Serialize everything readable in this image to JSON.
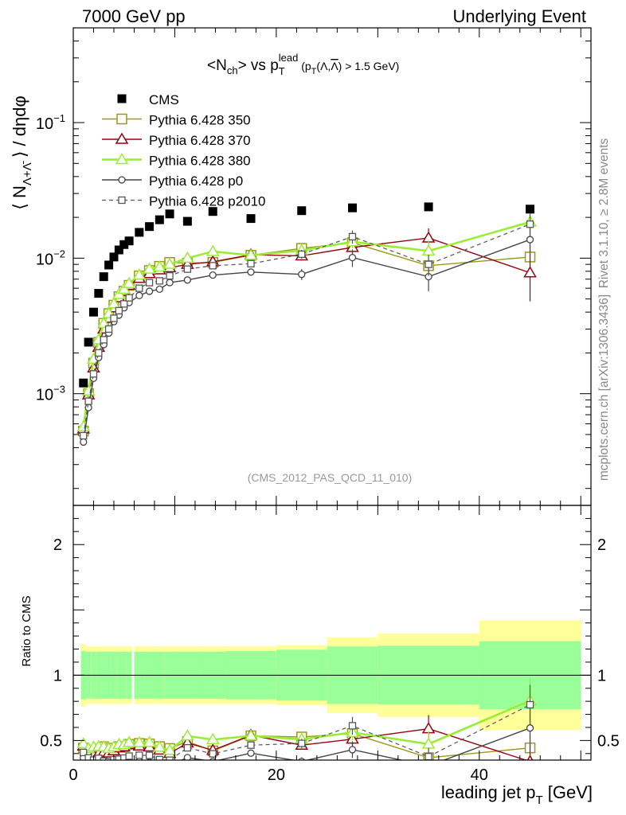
{
  "header": {
    "left": "7000 GeV pp",
    "right": "Underlying Event"
  },
  "side_labels": {
    "rivet": "Rivet 3.1.10, ≥ 2.8M events",
    "mcplots": "mcplots.cern.ch [arXiv:1306.3436]"
  },
  "chart_data": {
    "type": "scatter",
    "title": "<Nch> vs pTlead (pT(Λ,Λ̄) > 1.5 GeV)",
    "title_parts": {
      "a": "<N",
      "a_sub": "ch",
      "b": "> vs p",
      "b_sub": "T",
      "b_sup": "lead",
      "c": " (p",
      "c_sub": "T",
      "d": "(Λ,",
      "d_bar": "Λ",
      "e": ") > 1.5 GeV)"
    },
    "watermark": "(CMS_2012_PAS_QCD_11_010)",
    "xlabel": "leading jet p",
    "xlabel_sub": "T",
    "xlabel_unit": " [GeV]",
    "ylabel_parts": {
      "open": "⟨ N",
      "sub": "Λ+Λ̄",
      "close": " ⟩ / dηdφ"
    },
    "ratio_ylabel": "Ratio to CMS",
    "xlim": [
      0,
      51
    ],
    "ylim": [
      0.00015,
      0.5
    ],
    "yscale": "log",
    "ratio_ylim": [
      0.35,
      2.3
    ],
    "x_tick_labels": [
      "0",
      "20",
      "40"
    ],
    "x_ticks": [
      0,
      20,
      40
    ],
    "y_tick_labels": [
      {
        "base": "10",
        "exp": "−3",
        "value": 0.001
      },
      {
        "base": "10",
        "exp": "−2",
        "value": 0.01
      },
      {
        "base": "10",
        "exp": "−1",
        "value": 0.1
      }
    ],
    "ratio_tick_labels": [
      {
        "text": "0.5",
        "value": 0.5
      },
      {
        "text": "1",
        "value": 1
      },
      {
        "text": "2",
        "value": 2
      }
    ],
    "legend_position": "top-left",
    "x": [
      1.0,
      1.5,
      2.0,
      2.5,
      3.0,
      3.5,
      4.0,
      4.5,
      5.0,
      5.5,
      6.5,
      7.5,
      8.5,
      9.5,
      11.25,
      13.75,
      17.5,
      22.5,
      27.5,
      35.0,
      45.0
    ],
    "xerr": [
      0.25,
      0.25,
      0.25,
      0.25,
      0.25,
      0.25,
      0.25,
      0.25,
      0.25,
      0.25,
      0.5,
      0.5,
      0.5,
      0.5,
      1.25,
      1.25,
      2.5,
      2.5,
      2.5,
      5.0,
      5.0
    ],
    "cms": {
      "name": "CMS",
      "color": "#000000",
      "values": [
        0.0012,
        0.0024,
        0.004,
        0.0055,
        0.0073,
        0.0089,
        0.0102,
        0.0115,
        0.0126,
        0.0134,
        0.0155,
        0.0171,
        0.0192,
        0.0212,
        0.0187,
        0.0221,
        0.0196,
        0.0224,
        0.0235,
        0.0239,
        0.023
      ],
      "stat_band_ratio": [
        0.185,
        0.18,
        0.18,
        0.18,
        0.18,
        0.18,
        0.18,
        0.18,
        0.18,
        0.18,
        0.18,
        0.18,
        0.18,
        0.18,
        0.18,
        0.18,
        0.185,
        0.195,
        0.22,
        0.225,
        0.26
      ],
      "total_band_ratio": [
        0.24,
        0.22,
        0.22,
        0.22,
        0.22,
        0.22,
        0.22,
        0.22,
        0.22,
        0.22,
        0.22,
        0.22,
        0.22,
        0.22,
        0.22,
        0.22,
        0.22,
        0.23,
        0.29,
        0.32,
        0.42
      ]
    },
    "stat_color": "#99ff99",
    "syst_color": "#ffff99",
    "series": [
      {
        "name": "Pythia 6.428 350",
        "color": "#99991a",
        "marker": "square",
        "dashed": false,
        "width": 1.4,
        "values": [
          0.00053,
          0.001,
          0.00168,
          0.00239,
          0.0033,
          0.0039,
          0.0045,
          0.0052,
          0.0057,
          0.0063,
          0.0074,
          0.0081,
          0.0087,
          0.0093,
          0.0092,
          0.0093,
          0.0105,
          0.0118,
          0.013,
          0.0088,
          0.0102
        ],
        "errors": [
          2e-05,
          3e-05,
          4e-05,
          5e-05,
          0.0001,
          0.0001,
          0.0001,
          0.0001,
          0.0001,
          0.0001,
          0.0002,
          0.0002,
          0.0002,
          0.0002,
          0.0003,
          0.0004,
          0.0005,
          0.0008,
          0.0012,
          0.0013,
          0.0024
        ]
      },
      {
        "name": "Pythia 6.428 370",
        "color": "#990011",
        "marker": "triangle",
        "dashed": false,
        "width": 1.4,
        "values": [
          0.00055,
          0.00098,
          0.00155,
          0.0022,
          0.003,
          0.0036,
          0.0043,
          0.0051,
          0.0057,
          0.0063,
          0.0071,
          0.0077,
          0.0082,
          0.0085,
          0.009,
          0.0094,
          0.0106,
          0.0104,
          0.012,
          0.0141,
          0.0078
        ],
        "errors": [
          2e-05,
          3e-05,
          4e-05,
          5e-05,
          0.0001,
          0.0001,
          0.0001,
          0.0001,
          0.0001,
          0.0001,
          0.0002,
          0.0002,
          0.0002,
          0.0002,
          0.0003,
          0.0004,
          0.0005,
          0.0008,
          0.0014,
          0.0025,
          0.003
        ]
      },
      {
        "name": "Pythia 6.428 380",
        "color": "#99ee33",
        "marker": "triangle",
        "dashed": false,
        "width": 2.6,
        "values": [
          0.00057,
          0.00105,
          0.0018,
          0.0025,
          0.0033,
          0.0039,
          0.0046,
          0.0054,
          0.0059,
          0.0065,
          0.0075,
          0.0083,
          0.0086,
          0.009,
          0.01,
          0.0112,
          0.0105,
          0.0114,
          0.0132,
          0.0113,
          0.0185
        ],
        "errors": [
          2e-05,
          3e-05,
          4e-05,
          5e-05,
          0.0001,
          0.0001,
          0.0001,
          0.0001,
          0.0001,
          0.0001,
          0.0002,
          0.0002,
          0.0002,
          0.0002,
          0.0003,
          0.0004,
          0.0005,
          0.0008,
          0.0014,
          0.0023,
          0.004
        ]
      },
      {
        "name": "Pythia 6.428 p0",
        "color": "#444444",
        "marker": "circle",
        "dashed": false,
        "width": 1.4,
        "values": [
          0.00044,
          0.00079,
          0.0013,
          0.00185,
          0.0023,
          0.0028,
          0.0034,
          0.0038,
          0.0043,
          0.0047,
          0.0053,
          0.0057,
          0.0059,
          0.0066,
          0.0069,
          0.0075,
          0.0079,
          0.0076,
          0.0101,
          0.0073,
          0.0137
        ],
        "errors": [
          2e-05,
          3e-05,
          4e-05,
          5e-05,
          0.0001,
          0.0001,
          0.0001,
          0.0001,
          0.0001,
          0.0001,
          0.0002,
          0.0002,
          0.0002,
          0.0002,
          0.0003,
          0.0003,
          0.0004,
          0.0007,
          0.0015,
          0.0016,
          0.0035
        ]
      },
      {
        "name": "Pythia 6.428 p2010",
        "color": "#555555",
        "marker": "square-small",
        "dashed": true,
        "width": 1.2,
        "values": [
          0.00049,
          0.00088,
          0.0014,
          0.002,
          0.0025,
          0.003,
          0.0036,
          0.0041,
          0.0046,
          0.0051,
          0.006,
          0.0066,
          0.0068,
          0.0074,
          0.0083,
          0.0088,
          0.0091,
          0.0107,
          0.0144,
          0.009,
          0.0178
        ],
        "errors": [
          2e-05,
          3e-05,
          4e-05,
          5e-05,
          0.0001,
          0.0001,
          0.0001,
          0.0001,
          0.0001,
          0.0001,
          0.0002,
          0.0002,
          0.0002,
          0.0002,
          0.0003,
          0.0004,
          0.0005,
          0.0008,
          0.0016,
          0.0016,
          0.0035
        ]
      }
    ]
  }
}
